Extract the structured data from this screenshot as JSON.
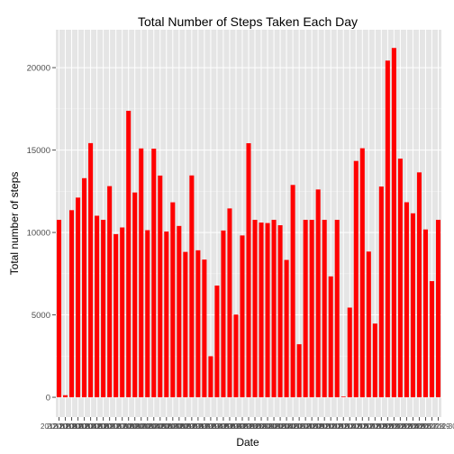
{
  "chart_data": {
    "type": "bar",
    "title": "Total Number of Steps Taken Each Day",
    "xlabel": "Date",
    "ylabel": "Total number of steps",
    "ylim": [
      -1200,
      22300
    ],
    "yticks": [
      0,
      5000,
      10000,
      15000,
      20000
    ],
    "ytick_labels": [
      "0",
      "5000",
      "10000",
      "15000",
      "20000"
    ],
    "x_tick_text": "2012",
    "grid": true,
    "legend": "none",
    "bar_color": "#ff0000",
    "panel_color": "#e5e5e5",
    "categories": [
      "2012-10-01",
      "2012-10-02",
      "2012-10-03",
      "2012-10-04",
      "2012-10-05",
      "2012-10-06",
      "2012-10-07",
      "2012-10-08",
      "2012-10-09",
      "2012-10-10",
      "2012-10-11",
      "2012-10-12",
      "2012-10-13",
      "2012-10-14",
      "2012-10-15",
      "2012-10-16",
      "2012-10-17",
      "2012-10-18",
      "2012-10-19",
      "2012-10-20",
      "2012-10-21",
      "2012-10-22",
      "2012-10-23",
      "2012-10-24",
      "2012-10-25",
      "2012-10-26",
      "2012-10-27",
      "2012-10-28",
      "2012-10-29",
      "2012-10-30",
      "2012-10-31",
      "2012-11-01",
      "2012-11-02",
      "2012-11-03",
      "2012-11-04",
      "2012-11-05",
      "2012-11-06",
      "2012-11-07",
      "2012-11-08",
      "2012-11-09",
      "2012-11-10",
      "2012-11-11",
      "2012-11-12",
      "2012-11-13",
      "2012-11-14",
      "2012-11-15",
      "2012-11-16",
      "2012-11-17",
      "2012-11-18",
      "2012-11-19",
      "2012-11-20",
      "2012-11-21",
      "2012-11-22",
      "2012-11-23",
      "2012-11-24",
      "2012-11-25",
      "2012-11-26",
      "2012-11-27",
      "2012-11-28",
      "2012-11-29",
      "2012-11-30"
    ],
    "values": [
      10766,
      126,
      11352,
      12116,
      13294,
      15420,
      11015,
      10766,
      12811,
      9900,
      10304,
      17382,
      12426,
      15098,
      10139,
      15084,
      13452,
      10056,
      11829,
      10395,
      8821,
      13460,
      8918,
      8355,
      2492,
      6778,
      10119,
      11458,
      5018,
      9819,
      15414,
      10766,
      10600,
      10571,
      10766,
      10439,
      8334,
      12883,
      3219,
      10766,
      10766,
      12608,
      10765,
      7336,
      10766,
      41,
      5441,
      14339,
      15110,
      8841,
      4472,
      12787,
      20427,
      21194,
      14478,
      11834,
      11162,
      13646,
      10183,
      7047,
      10766
    ]
  }
}
